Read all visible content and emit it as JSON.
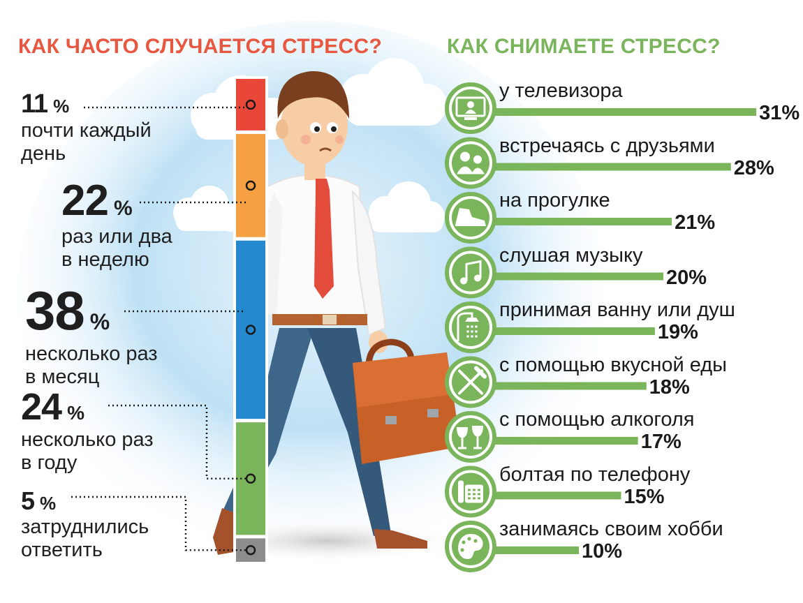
{
  "titles": {
    "left": "КАК ЧАСТО СЛУЧАЕТСЯ СТРЕСС?",
    "right": "КАК СНИМАЕТЕ СТРЕСС?"
  },
  "percent_sign": "%",
  "colors": {
    "left_title": "#e8573f",
    "right_title": "#7ab55b",
    "activity_bar": "#7ab55b",
    "icon_circle": "#7ab55b"
  },
  "chart_data": [
    {
      "type": "bar",
      "stacked": true,
      "orientation": "vertical",
      "title": "КАК ЧАСТО СЛУЧАЕТСЯ СТРЕСС?",
      "unit": "%",
      "categories": [
        "почти каждый день",
        "раз или два в неделю",
        "несколько раз в месяц",
        "несколько раз в году",
        "затруднились ответить"
      ],
      "values": [
        11,
        22,
        38,
        24,
        5
      ],
      "value_labels": [
        "11",
        "22",
        "38",
        "24",
        "5"
      ],
      "label_lines": [
        [
          "почти каждый",
          "день"
        ],
        [
          "раз или два",
          "в неделю"
        ],
        [
          "несколько раз",
          "в месяц"
        ],
        [
          "несколько раз",
          "в году"
        ],
        [
          "затруднились",
          "ответить"
        ]
      ],
      "colors": [
        "#e8473a",
        "#f4a043",
        "#2589cf",
        "#7ab55b",
        "#8c8c8c"
      ]
    },
    {
      "type": "bar",
      "orientation": "horizontal",
      "title": "КАК СНИМАЕТЕ СТРЕСС?",
      "unit": "%",
      "categories": [
        "у телевизора",
        "встречаясь с друзьями",
        "на прогулке",
        "слушая музыку",
        "принимая ванну или душ",
        "с помощью вкусной еды",
        "с помощью алкоголя",
        "болтая по телефону",
        "занимаясь своим хобби"
      ],
      "values": [
        31,
        28,
        21,
        20,
        19,
        18,
        17,
        15,
        10
      ],
      "value_labels": [
        "31%",
        "28%",
        "21%",
        "20%",
        "19%",
        "18%",
        "17%",
        "15%",
        "10%"
      ],
      "icons": [
        "tv-icon",
        "friends-icon",
        "shoe-icon",
        "music-notes-icon",
        "shower-icon",
        "fork-knife-icon",
        "wine-glasses-icon",
        "telephone-icon",
        "palette-icon"
      ]
    }
  ]
}
